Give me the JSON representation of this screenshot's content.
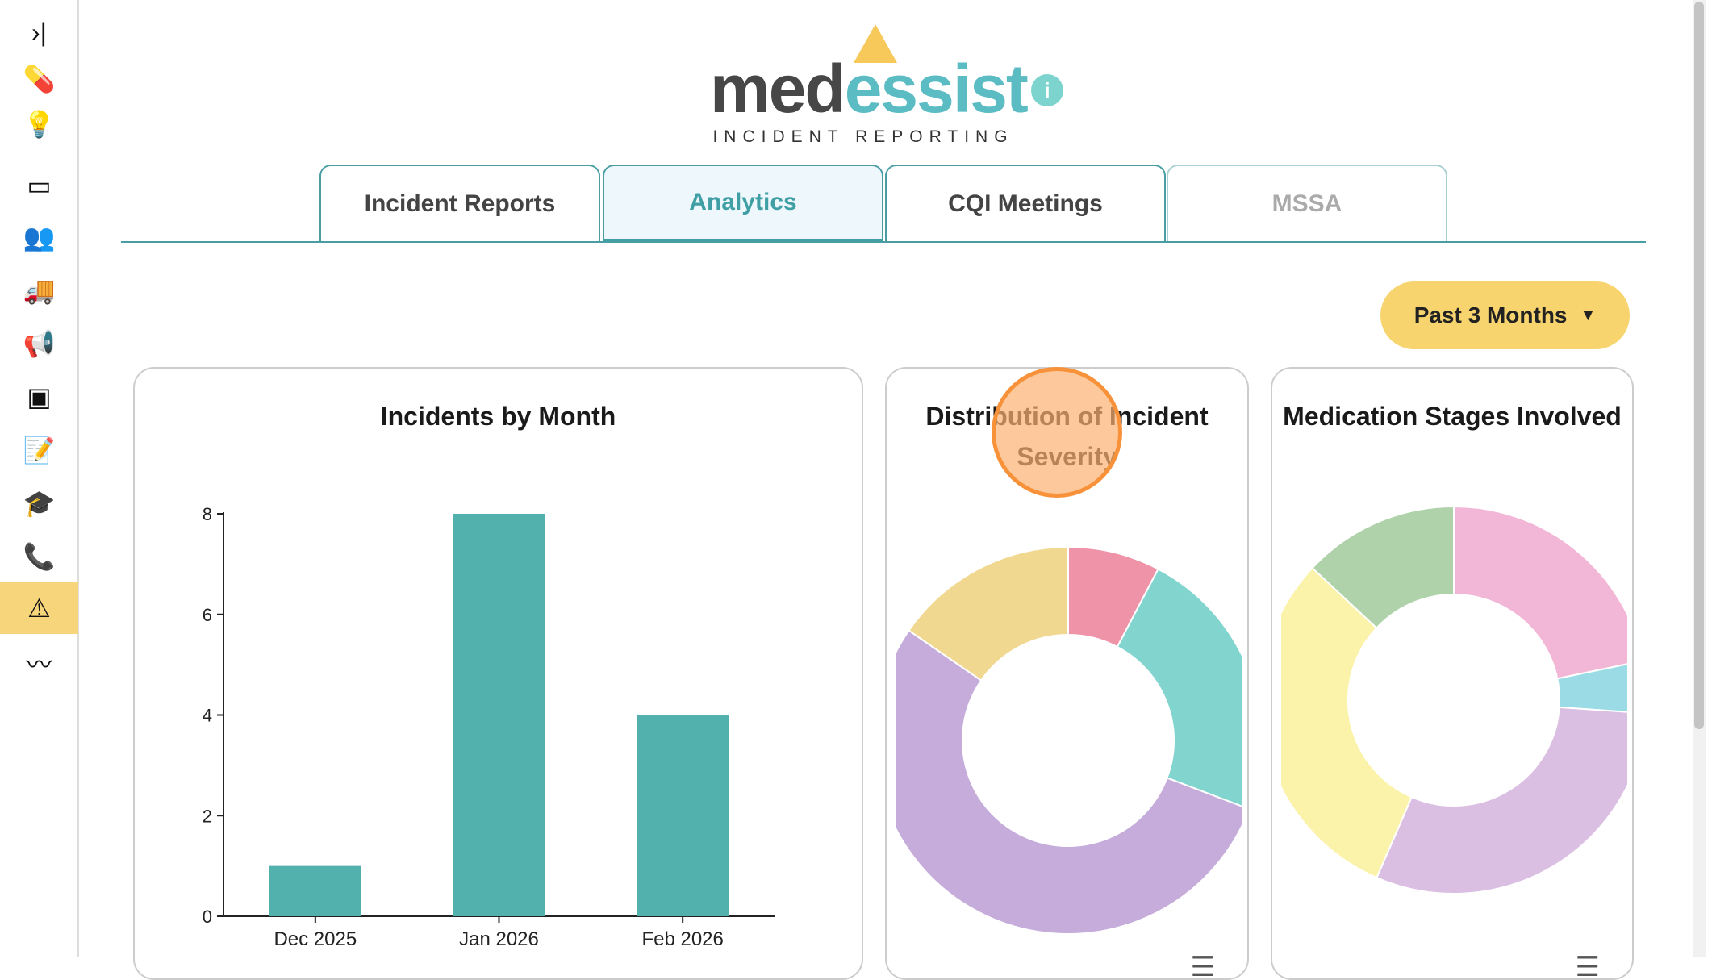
{
  "sidebar": {
    "items": [
      {
        "name": "collapse",
        "icon": "›|"
      },
      {
        "name": "medication",
        "icon": "💊"
      },
      {
        "name": "ideas",
        "icon": "💡"
      },
      {
        "name": "calendar",
        "icon": "▭"
      },
      {
        "name": "people",
        "icon": "👥"
      },
      {
        "name": "delivery",
        "icon": "🚚"
      },
      {
        "name": "announcements",
        "icon": "📢"
      },
      {
        "name": "payments",
        "icon": "▣"
      },
      {
        "name": "notes",
        "icon": "📝"
      },
      {
        "name": "education",
        "icon": "🎓"
      },
      {
        "name": "calls",
        "icon": "📞"
      },
      {
        "name": "incidents",
        "icon": "⚠"
      },
      {
        "name": "analytics",
        "icon": "〰"
      }
    ],
    "active": "incidents"
  },
  "logo": {
    "word_a": "med",
    "word_b": "essist",
    "subtitle": "INCIDENT REPORTING"
  },
  "info_icon": "i",
  "tabs": [
    {
      "label": "Incident Reports"
    },
    {
      "label": "Analytics",
      "active": true
    },
    {
      "label": "CQI Meetings"
    },
    {
      "label": "MSSA",
      "disabled": true
    }
  ],
  "range_button": {
    "label": "Past 3 Months"
  },
  "colors": {
    "teal": "#52b0ad",
    "accent": "#f7d46e"
  },
  "chart_data": [
    {
      "type": "bar",
      "title": "Incidents by Month",
      "categories": [
        "Dec 2025",
        "Jan 2026",
        "Feb 2026"
      ],
      "values": [
        1,
        8,
        4
      ],
      "yticks": [
        "0",
        "2",
        "4",
        "6",
        "8"
      ],
      "ylim": [
        0,
        8
      ],
      "xlabel": "",
      "ylabel": ""
    },
    {
      "type": "pie",
      "title": "Distribution of Incident Severity",
      "values": [
        1,
        3,
        7,
        2
      ],
      "colors": [
        "#ef93a9",
        "#82d5cf",
        "#c6acdb",
        "#f1d890"
      ]
    },
    {
      "type": "pie",
      "title": "Medication Stages Involved",
      "values": [
        5,
        1,
        7,
        7,
        3
      ],
      "colors": [
        "#f2b6d6",
        "#9bdbe5",
        "#dbbfe2",
        "#fbf3a9",
        "#afd2ab"
      ]
    }
  ]
}
